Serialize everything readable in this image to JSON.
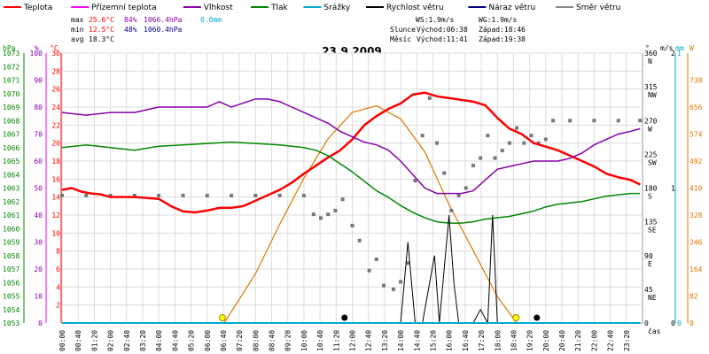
{
  "chart_data": {
    "type": "line",
    "title": "23.9.2009",
    "legend": [
      {
        "name": "Teplota",
        "color": "#ff0000"
      },
      {
        "name": "Přízemní teplota",
        "color": "#ff00ff"
      },
      {
        "name": "Vlhkost",
        "color": "#8800aa"
      },
      {
        "name": "Tlak",
        "color": "#008800"
      },
      {
        "name": "Srážky",
        "color": "#00aacc"
      },
      {
        "name": "Rychlost větru",
        "color": "#000000"
      },
      {
        "name": "Náraz větru",
        "color": "#000088"
      },
      {
        "name": "Směr větru",
        "color": "#888888"
      }
    ],
    "stats": {
      "max": {
        "label": "max",
        "temp": "25.6°C",
        "hum": "84%",
        "press": "1066.4hPa",
        "rain": "0.0mm"
      },
      "min": {
        "label": "min",
        "temp": "12.5°C",
        "hum": "48%",
        "press": "1060.4hPa"
      },
      "avg": {
        "label": "avg",
        "temp": "18.3°C"
      }
    },
    "wind_info": {
      "ws": "WS:1.9m/s",
      "wg": "WG:1.9m/s"
    },
    "sun": {
      "label": "Slunce",
      "rise": "Východ:06:38",
      "set": "Západ:18:46"
    },
    "moon": {
      "label": "Měsíc",
      "rise": "Východ:11:41",
      "set": "Západ:19:38"
    },
    "xlabel": "čas",
    "x_ticks": [
      "00:00",
      "00:40",
      "01:20",
      "02:00",
      "02:40",
      "03:20",
      "04:00",
      "04:40",
      "05:20",
      "06:00",
      "06:40",
      "07:20",
      "08:00",
      "08:40",
      "09:20",
      "10:00",
      "10:40",
      "11:20",
      "12:00",
      "12:40",
      "13:20",
      "14:00",
      "14:40",
      "15:20",
      "16:00",
      "16:40",
      "17:20",
      "18:00",
      "18:40",
      "19:20",
      "20:00",
      "20:40",
      "21:20",
      "22:00",
      "22:40",
      "23:20"
    ],
    "axes": {
      "hpa": {
        "title": "hPa",
        "color": "#008800",
        "ylim": [
          1053,
          1073
        ],
        "ticks": [
          1053,
          1054,
          1055,
          1056,
          1057,
          1058,
          1059,
          1060,
          1061,
          1062,
          1063,
          1064,
          1065,
          1066,
          1067,
          1068,
          1069,
          1070,
          1071,
          1072,
          1073
        ]
      },
      "pct": {
        "title": "%",
        "color": "#8800aa",
        "ticks": [
          0,
          10,
          20,
          30,
          40,
          50,
          60,
          70,
          80,
          90,
          100
        ]
      },
      "temp": {
        "title": "°C",
        "color": "#ff0000",
        "ylim": [
          0,
          30
        ],
        "ticks": [
          2,
          4,
          6,
          8,
          10,
          12,
          14,
          16,
          18,
          20,
          22,
          24,
          26,
          28,
          30
        ]
      },
      "dir": {
        "title": "°",
        "color": "#000000",
        "ticks": [
          {
            "v": "0",
            "c": ""
          },
          {
            "v": "45",
            "c": "NE"
          },
          {
            "v": "90",
            "c": "E"
          },
          {
            "v": "135",
            "c": "SE"
          },
          {
            "v": "180",
            "c": "S"
          },
          {
            "v": "225",
            "c": "SW"
          },
          {
            "v": "270",
            "c": "W"
          },
          {
            "v": "315",
            "c": "NW"
          },
          {
            "v": "360",
            "c": "N"
          }
        ]
      },
      "ms": {
        "title": "m/s",
        "color": "#000000",
        "ticks": [
          "0",
          "1",
          "2"
        ]
      },
      "mm": {
        "title": "mm",
        "color": "#00aacc",
        "ticks": [
          "0",
          "1"
        ]
      },
      "w": {
        "title": "W",
        "color": "#dd7700",
        "ticks": [
          0,
          82,
          164,
          246,
          328,
          410,
          492,
          574,
          656,
          738
        ]
      }
    },
    "series": [
      {
        "name": "Teplota",
        "color": "#ff0000",
        "unit": "°C",
        "x": [
          0,
          0.4,
          0.8,
          1.2,
          1.6,
          2,
          3,
          4,
          4.5,
          5,
          5.5,
          6,
          6.5,
          7,
          7.5,
          8,
          8.5,
          9,
          9.5,
          10,
          10.5,
          11,
          11.5,
          12,
          12.5,
          13,
          13.5,
          14,
          14.5,
          15,
          15.5,
          16,
          16.5,
          17,
          17.5,
          18,
          18.5,
          19,
          19.5,
          20,
          20.5,
          21,
          21.5,
          22,
          22.5,
          23,
          23.5,
          23.9
        ],
        "values": [
          14.8,
          15,
          14.6,
          14.4,
          14.3,
          14,
          14,
          13.8,
          13,
          12.4,
          12.3,
          12.5,
          12.8,
          12.8,
          13,
          13.6,
          14.2,
          14.8,
          15.6,
          16.6,
          17.5,
          18.4,
          19.2,
          20.4,
          22,
          23,
          23.8,
          24.4,
          25.4,
          25.6,
          25.2,
          25,
          24.8,
          24.6,
          24.2,
          22.8,
          21.6,
          21,
          20,
          19.6,
          19.2,
          18.6,
          18,
          17.4,
          16.6,
          16.2,
          15.9,
          15.4
        ]
      },
      {
        "name": "Vlhkost",
        "color": "#8800aa",
        "unit": "%",
        "x": [
          0,
          1,
          2,
          3,
          4,
          5,
          6,
          6.5,
          7,
          8,
          8.5,
          9,
          9.5,
          10,
          10.5,
          11,
          11.5,
          12,
          12.5,
          13,
          13.5,
          14,
          14.5,
          15,
          15.5,
          16,
          16.5,
          17,
          17.5,
          18,
          18.5,
          19,
          19.5,
          20,
          20.5,
          21,
          21.5,
          22,
          22.5,
          23,
          23.5,
          23.9
        ],
        "values": [
          78,
          77,
          78,
          78,
          80,
          80,
          80,
          82,
          80,
          83,
          83,
          82,
          80,
          78,
          76,
          74,
          71,
          69,
          67,
          66,
          64,
          60,
          55,
          50,
          48,
          48,
          48,
          49,
          53,
          57,
          58,
          59,
          60,
          60,
          60,
          61,
          63,
          66,
          68,
          70,
          71,
          72
        ]
      },
      {
        "name": "Tlak",
        "color": "#008800",
        "unit": "hPa",
        "x": [
          0,
          1,
          2,
          3,
          4,
          5,
          6,
          7,
          8,
          9,
          10,
          10.5,
          11,
          11.5,
          12,
          12.5,
          13,
          13.5,
          14,
          14.5,
          15,
          15.5,
          16,
          16.5,
          17,
          17.5,
          18,
          18.5,
          19,
          19.5,
          20,
          20.5,
          21,
          21.5,
          22,
          22.5,
          23,
          23.5,
          23.9
        ],
        "values": [
          1066.0,
          1066.2,
          1066.0,
          1065.8,
          1066.1,
          1066.2,
          1066.3,
          1066.4,
          1066.3,
          1066.2,
          1066.0,
          1065.8,
          1065.4,
          1064.8,
          1064.2,
          1063.5,
          1062.8,
          1062.3,
          1061.7,
          1061.2,
          1060.8,
          1060.5,
          1060.4,
          1060.4,
          1060.5,
          1060.7,
          1060.8,
          1060.9,
          1061.1,
          1061.3,
          1061.6,
          1061.8,
          1061.9,
          1062.0,
          1062.2,
          1062.4,
          1062.5,
          1062.6,
          1062.6
        ]
      },
      {
        "name": "Rychlost větru",
        "color": "#000000",
        "unit": "m/s",
        "x": [
          0,
          14,
          14.3,
          14.6,
          14.9,
          15.2,
          15.4,
          15.6,
          15.8,
          16,
          16.2,
          16.4,
          17,
          17.3,
          17.6,
          17.8,
          18,
          18.3,
          18.6,
          19,
          23.9
        ],
        "values": [
          0,
          0,
          0.6,
          0,
          0,
          0.3,
          0.5,
          0,
          0.4,
          0.8,
          0.3,
          0,
          0,
          0.1,
          0,
          0.8,
          0,
          0,
          0,
          0,
          0
        ]
      },
      {
        "name": "Srážky",
        "color": "#00aacc",
        "unit": "mm",
        "x": [
          0,
          23.9
        ],
        "values": [
          0,
          0
        ]
      }
    ],
    "direction_points": {
      "x": [
        0,
        1,
        2,
        3,
        4,
        5,
        6,
        7,
        8,
        9,
        10,
        10.4,
        10.7,
        11,
        11.3,
        11.6,
        12,
        12.3,
        12.7,
        13,
        13.3,
        13.7,
        14,
        14.3,
        14.6,
        14.9,
        15.2,
        15.5,
        15.8,
        16.1,
        16.4,
        16.7,
        17,
        17.3,
        17.6,
        17.9,
        18.2,
        18.5,
        18.8,
        19.1,
        19.4,
        19.7,
        20,
        20.3,
        21,
        22,
        23,
        23.9
      ],
      "values": [
        170,
        170,
        170,
        170,
        170,
        170,
        170,
        170,
        170,
        170,
        170,
        145,
        140,
        145,
        150,
        165,
        130,
        110,
        70,
        85,
        50,
        45,
        55,
        80,
        190,
        250,
        300,
        240,
        200,
        150,
        170,
        180,
        210,
        220,
        250,
        220,
        230,
        240,
        260,
        240,
        250,
        240,
        245,
        270,
        270,
        270,
        270,
        270
      ]
    },
    "solar_radiation": {
      "unit": "W",
      "x": [
        6.7,
        8,
        9,
        10,
        11,
        12,
        13,
        14,
        15,
        16,
        17,
        18,
        18.8
      ],
      "values": [
        0,
        150,
        300,
        440,
        560,
        640,
        660,
        620,
        520,
        360,
        220,
        80,
        0
      ]
    },
    "markers": {
      "sun_rise": 6.63,
      "sun_set": 18.77,
      "moon_rise": 11.68,
      "moon_set": 19.63
    }
  }
}
